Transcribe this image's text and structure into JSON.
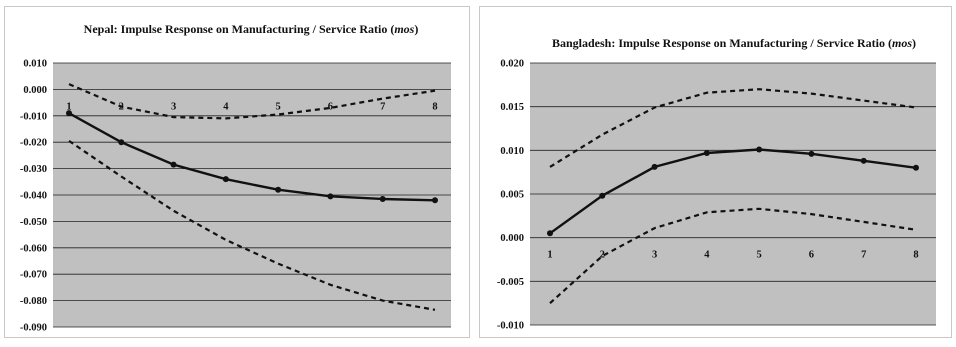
{
  "chart_data": [
    {
      "type": "line",
      "title_main": "Nepal:  Impulse  Response on Manufacturing  / Service Ratio ",
      "title_italic": "mos",
      "title_close": ")",
      "title_open": "(",
      "x": [
        1,
        2,
        3,
        4,
        5,
        6,
        7,
        8
      ],
      "x_tick_labels": [
        "1",
        "2",
        "3",
        "4",
        "5",
        "6",
        "7",
        "8"
      ],
      "y_tick_labels": [
        "0.010",
        "0.000",
        "-0.010",
        "-0.020",
        "-0.030",
        "-0.040",
        "-0.050",
        "-0.060",
        "-0.070",
        "-0.080",
        "-0.090"
      ],
      "ylim": [
        -0.09,
        0.01
      ],
      "ytick_step": 0.01,
      "grid": true,
      "background_color": "#c0c0c0",
      "series": [
        {
          "values": [
            -0.009,
            -0.02,
            -0.0285,
            -0.034,
            -0.038,
            -0.0405,
            -0.0415,
            -0.042
          ],
          "style": "solid-markers"
        },
        {
          "values": [
            0.002,
            -0.0065,
            -0.0105,
            -0.011,
            -0.0095,
            -0.007,
            -0.0035,
            -0.0005
          ],
          "style": "dashed"
        },
        {
          "values": [
            -0.0195,
            -0.033,
            -0.046,
            -0.057,
            -0.066,
            -0.074,
            -0.08,
            -0.0835
          ],
          "style": "dashed"
        }
      ]
    },
    {
      "type": "line",
      "title_main": "Bangladesh:  Impulse  Response on Manufacturing  / Service Ratio ",
      "title_italic": "mos",
      "title_close": ")",
      "title_open": "(",
      "x": [
        1,
        2,
        3,
        4,
        5,
        6,
        7,
        8
      ],
      "x_tick_labels": [
        "1",
        "2",
        "3",
        "4",
        "5",
        "6",
        "7",
        "8"
      ],
      "y_tick_labels": [
        "0.020",
        "0.015",
        "0.010",
        "0.005",
        "0.000",
        "-0.005",
        "-0.010"
      ],
      "ylim": [
        -0.01,
        0.02
      ],
      "ytick_step": 0.005,
      "grid": true,
      "background_color": "#c0c0c0",
      "series": [
        {
          "values": [
            0.0005,
            0.0048,
            0.0081,
            0.0097,
            0.0101,
            0.0096,
            0.0088,
            0.008
          ],
          "style": "solid-markers"
        },
        {
          "values": [
            0.0081,
            0.0118,
            0.0149,
            0.0166,
            0.017,
            0.0165,
            0.0157,
            0.0149
          ],
          "style": "dashed"
        },
        {
          "values": [
            -0.0075,
            -0.0021,
            0.0011,
            0.0029,
            0.0033,
            0.0027,
            0.0018,
            0.0009
          ],
          "style": "dashed"
        }
      ]
    }
  ]
}
